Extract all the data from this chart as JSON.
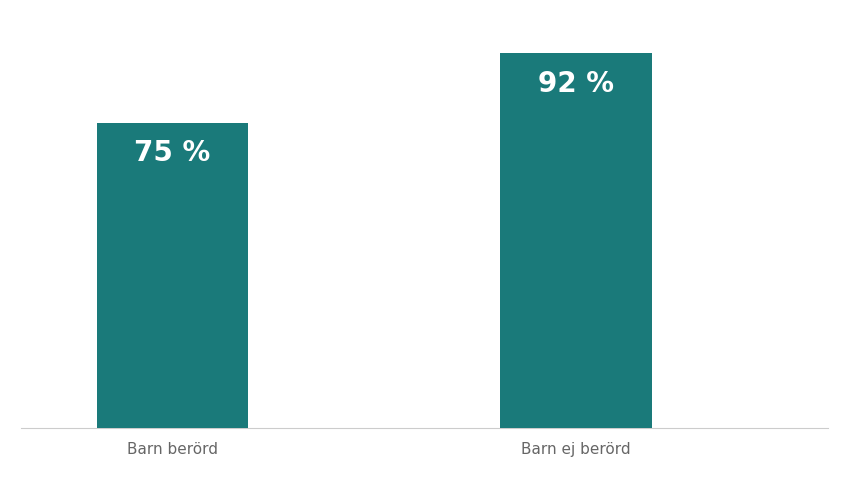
{
  "categories": [
    "Barn berörd",
    "Barn ej berörd"
  ],
  "values": [
    75,
    92
  ],
  "bar_color": "#1a7a7a",
  "label_texts": [
    "75 %",
    "92 %"
  ],
  "label_color": "#ffffff",
  "label_fontsize": 20,
  "xlabel_fontsize": 11,
  "xlabel_color": "#666666",
  "background_color": "#ffffff",
  "ylim": [
    0,
    100
  ],
  "bar_width": 0.15,
  "x_positions": [
    0.25,
    0.65
  ]
}
